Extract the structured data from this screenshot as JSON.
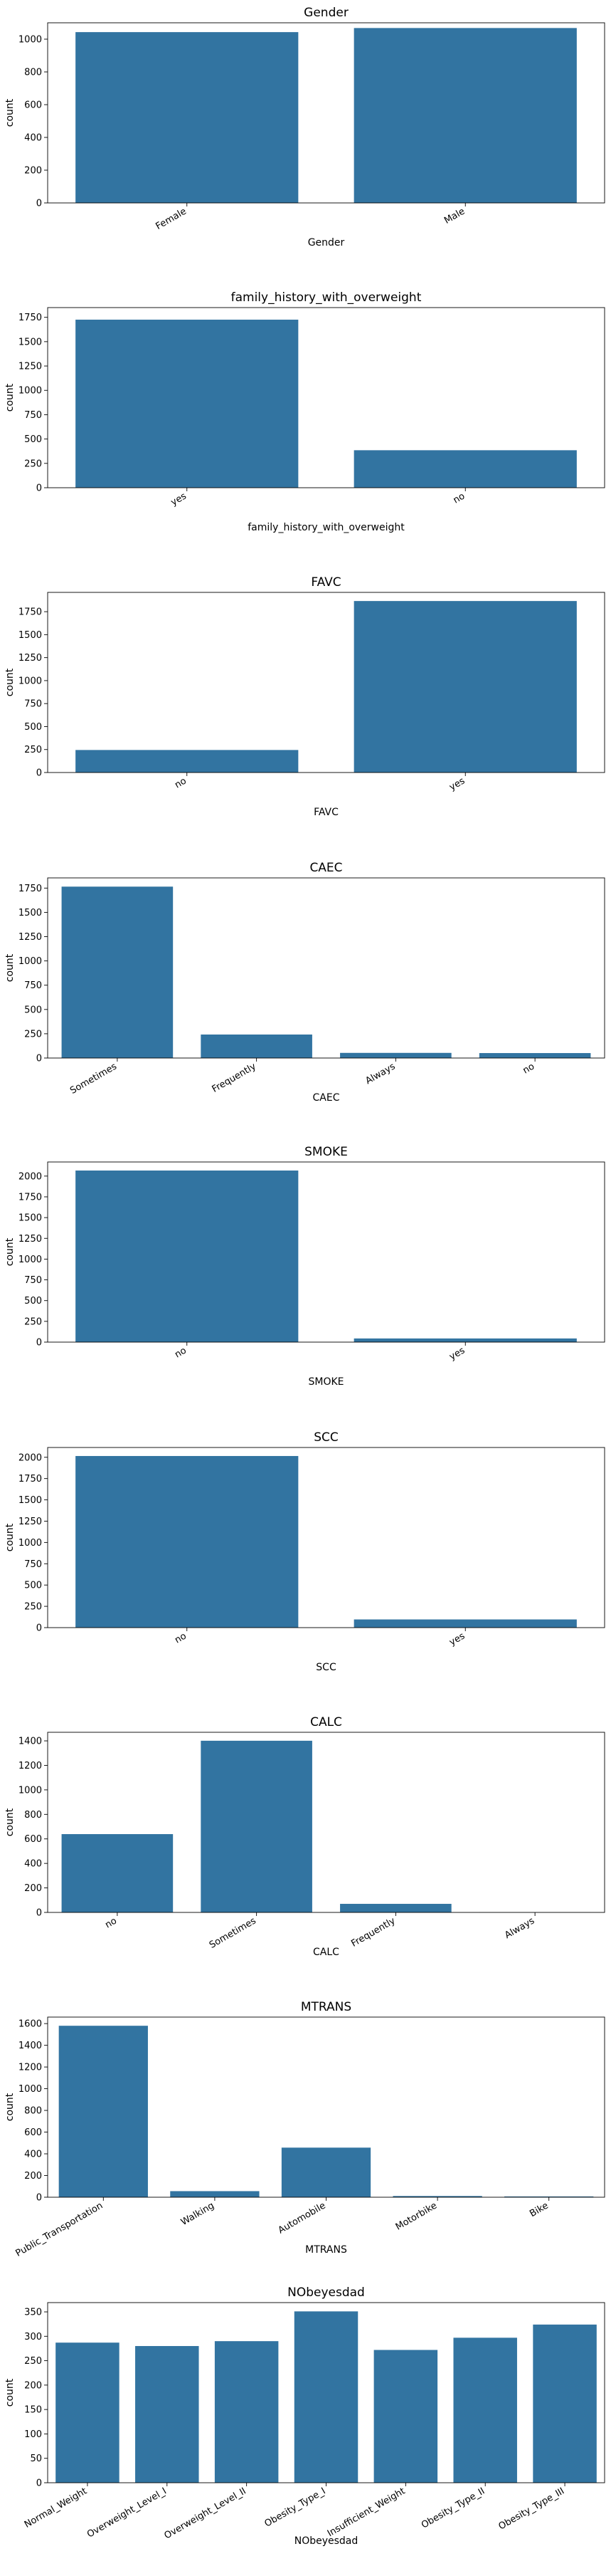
{
  "chart_data": [
    {
      "type": "bar",
      "title": "Gender",
      "xlabel": "Gender",
      "ylabel": "count",
      "categories": [
        "Female",
        "Male"
      ],
      "values": [
        1043,
        1068
      ],
      "ylim": [
        0,
        1100
      ],
      "yticks": [
        0,
        200,
        400,
        600,
        800,
        1000
      ],
      "bar_color": "#3274a1",
      "grid": false,
      "rotated_xticks": true
    },
    {
      "type": "bar",
      "title": "family_history_with_overweight",
      "xlabel": "family_history_with_overweight",
      "ylabel": "count",
      "categories": [
        "yes",
        "no"
      ],
      "values": [
        1726,
        385
      ],
      "ylim": [
        0,
        1850
      ],
      "yticks": [
        0,
        250,
        500,
        750,
        1000,
        1250,
        1500,
        1750
      ],
      "bar_color": "#3274a1",
      "grid": false,
      "rotated_xticks": true
    },
    {
      "type": "bar",
      "title": "FAVC",
      "xlabel": "FAVC",
      "ylabel": "count",
      "categories": [
        "no",
        "yes"
      ],
      "values": [
        245,
        1866
      ],
      "ylim": [
        0,
        1960
      ],
      "yticks": [
        0,
        250,
        500,
        750,
        1000,
        1250,
        1500,
        1750
      ],
      "bar_color": "#3274a1",
      "grid": false,
      "rotated_xticks": true
    },
    {
      "type": "bar",
      "title": "CAEC",
      "xlabel": "CAEC",
      "ylabel": "count",
      "categories": [
        "Sometimes",
        "Frequently",
        "Always",
        "no"
      ],
      "values": [
        1765,
        242,
        53,
        51
      ],
      "ylim": [
        0,
        1855
      ],
      "yticks": [
        0,
        250,
        500,
        750,
        1000,
        1250,
        1500,
        1750
      ],
      "bar_color": "#3274a1",
      "grid": false,
      "rotated_xticks": true
    },
    {
      "type": "bar",
      "title": "SMOKE",
      "xlabel": "SMOKE",
      "ylabel": "count",
      "categories": [
        "no",
        "yes"
      ],
      "values": [
        2067,
        44
      ],
      "ylim": [
        0,
        2170
      ],
      "yticks": [
        0,
        250,
        500,
        750,
        1000,
        1250,
        1500,
        1750,
        2000
      ],
      "bar_color": "#3274a1",
      "grid": false,
      "rotated_xticks": true
    },
    {
      "type": "bar",
      "title": "SCC",
      "xlabel": "SCC",
      "ylabel": "count",
      "categories": [
        "no",
        "yes"
      ],
      "values": [
        2015,
        96
      ],
      "ylim": [
        0,
        2115
      ],
      "yticks": [
        0,
        250,
        500,
        750,
        1000,
        1250,
        1500,
        1750,
        2000
      ],
      "bar_color": "#3274a1",
      "grid": false,
      "rotated_xticks": true
    },
    {
      "type": "bar",
      "title": "CALC",
      "xlabel": "CALC",
      "ylabel": "count",
      "categories": [
        "no",
        "Sometimes",
        "Frequently",
        "Always"
      ],
      "values": [
        639,
        1401,
        70,
        1
      ],
      "ylim": [
        0,
        1470
      ],
      "yticks": [
        0,
        200,
        400,
        600,
        800,
        1000,
        1200,
        1400
      ],
      "bar_color": "#3274a1",
      "grid": false,
      "rotated_xticks": true
    },
    {
      "type": "bar",
      "title": "MTRANS",
      "xlabel": "MTRANS",
      "ylabel": "count",
      "categories": [
        "Public_Transportation",
        "Walking",
        "Automobile",
        "Motorbike",
        "Bike"
      ],
      "values": [
        1580,
        56,
        457,
        11,
        7
      ],
      "ylim": [
        0,
        1660
      ],
      "yticks": [
        0,
        200,
        400,
        600,
        800,
        1000,
        1200,
        1400,
        1600
      ],
      "bar_color": "#3274a1",
      "grid": false,
      "rotated_xticks": true
    },
    {
      "type": "bar",
      "title": "NObeyesdad",
      "xlabel": "NObeyesdad",
      "ylabel": "count",
      "categories": [
        "Normal_Weight",
        "Overweight_Level_I",
        "Overweight_Level_II",
        "Obesity_Type_I",
        "Insufficient_Weight",
        "Obesity_Type_II",
        "Obesity_Type_III"
      ],
      "values": [
        287,
        280,
        290,
        351,
        272,
        297,
        324
      ],
      "ylim": [
        0,
        369
      ],
      "yticks": [
        0,
        50,
        100,
        150,
        200,
        250,
        300,
        350
      ],
      "bar_color": "#3274a1",
      "grid": false,
      "rotated_xticks": true
    }
  ]
}
